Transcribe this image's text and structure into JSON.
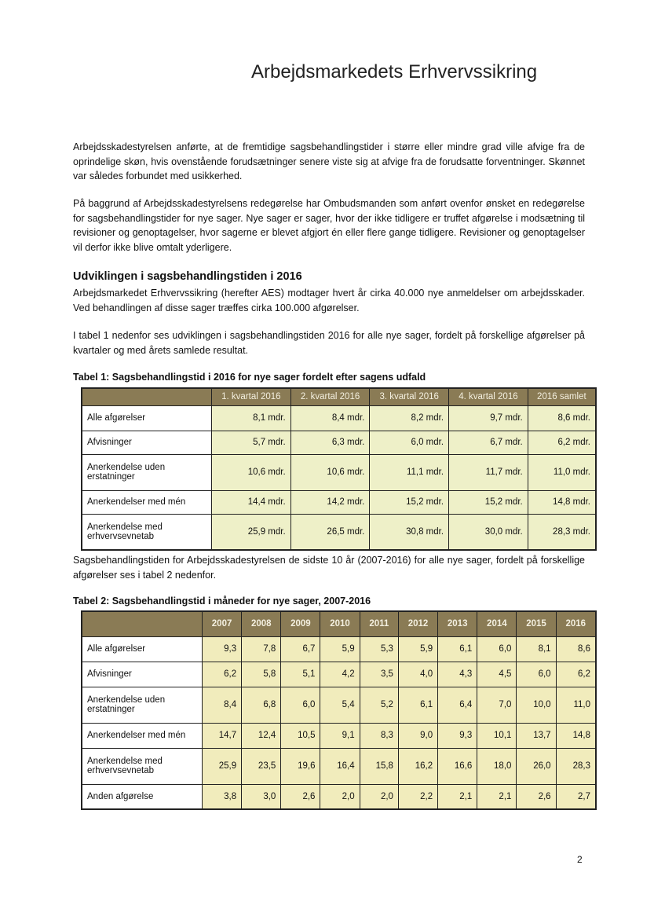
{
  "header": {
    "title": "Arbejdsmarkedets Erhvervssikring"
  },
  "paragraphs": [
    "Arbejdsskadestyrelsen anførte, at de fremtidige sagsbehandlingstider i større eller mindre grad ville afvige fra de oprindelige skøn, hvis ovenstående forudsætninger senere viste sig at afvige fra de forudsatte forventninger. Skønnet var således forbundet med usikkerhed.",
    "På baggrund af Arbejdsskadestyrelsens redegørelse har Ombudsmanden som anført ovenfor ønsket en redegørelse for sagsbehandlingstider for nye sager. Nye sager er sager, hvor der ikke tidligere er truffet afgørelse i modsætning til revisioner og genoptagelser, hvor sagerne er blevet afgjort én eller flere gange tidligere. Revisioner og genoptagelser vil derfor ikke blive omtalt yderligere."
  ],
  "section": {
    "heading": "Udviklingen i sagsbehandlingstiden i 2016",
    "paragraphs": [
      "Arbejdsmarkedet Erhvervssikring (herefter AES) modtager hvert år cirka 40.000 nye anmeldelser om arbejdsskader. Ved behandlingen af disse sager træffes cirka 100.000 afgørelser.",
      "I tabel 1 nedenfor ses udviklingen i sagsbehandlingstiden 2016 for alle nye sager, fordelt på forskellige afgørelser på kvartaler og med årets samlede resultat."
    ]
  },
  "table1": {
    "caption": "Tabel 1: Sagsbehandlingstid i 2016 for nye sager fordelt efter sagens udfald",
    "columns": [
      "1. kvartal 2016",
      "2. kvartal 2016",
      "3. kvartal 2016",
      "4. kvartal 2016",
      "2016 samlet"
    ],
    "rows": [
      [
        "Alle afgørelser",
        "8,1 mdr.",
        "8,4 mdr.",
        "8,2 mdr.",
        "9,7 mdr.",
        "8,6 mdr."
      ],
      [
        "Afvisninger",
        "5,7 mdr.",
        "6,3 mdr.",
        "6,0 mdr.",
        "6,7 mdr.",
        "6,2 mdr."
      ],
      [
        "Anerkendelse uden erstatninger",
        "10,6 mdr.",
        "10,6 mdr.",
        "11,1 mdr.",
        "11,7 mdr.",
        "11,0 mdr."
      ],
      [
        "Anerkendelser med mén",
        "14,4 mdr.",
        "14,2 mdr.",
        "15,2 mdr.",
        "15,2 mdr.",
        "14,8 mdr."
      ],
      [
        "Anerkendelse med erhvervsevnetab",
        "25,9 mdr.",
        "26,5 mdr.",
        "30,8 mdr.",
        "30,0 mdr.",
        "28,3 mdr."
      ]
    ]
  },
  "paragraph_between": "Sagsbehandlingstiden for Arbejdsskadestyrelsen de sidste 10 år (2007-2016) for alle nye sager, fordelt på forskellige afgørelser ses i tabel 2 nedenfor.",
  "table2": {
    "caption": "Tabel 2: Sagsbehandlingstid i måneder for nye sager, 2007-2016",
    "columns": [
      "2007",
      "2008",
      "2009",
      "2010",
      "2011",
      "2012",
      "2013",
      "2014",
      "2015",
      "2016"
    ],
    "rows": [
      [
        "Alle afgørelser",
        "9,3",
        "7,8",
        "6,7",
        "5,9",
        "5,3",
        "5,9",
        "6,1",
        "6,0",
        "8,1",
        "8,6"
      ],
      [
        "Afvisninger",
        "6,2",
        "5,8",
        "5,1",
        "4,2",
        "3,5",
        "4,0",
        "4,3",
        "4,5",
        "6,0",
        "6,2"
      ],
      [
        "Anerkendelse uden erstatninger",
        "8,4",
        "6,8",
        "6,0",
        "5,4",
        "5,2",
        "6,1",
        "6,4",
        "7,0",
        "10,0",
        "11,0"
      ],
      [
        "Anerkendelser med mén",
        "14,7",
        "12,4",
        "10,5",
        "9,1",
        "8,3",
        "9,0",
        "9,3",
        "10,1",
        "13,7",
        "14,8"
      ],
      [
        "Anerkendelse med erhvervsevnetab",
        "25,9",
        "23,5",
        "19,6",
        "16,4",
        "15,8",
        "16,2",
        "16,6",
        "18,0",
        "26,0",
        "28,3"
      ],
      [
        "Anden afgørelse",
        "3,8",
        "3,0",
        "2,6",
        "2,0",
        "2,0",
        "2,2",
        "2,1",
        "2,1",
        "2,6",
        "2,7"
      ]
    ]
  },
  "page_number": "2"
}
